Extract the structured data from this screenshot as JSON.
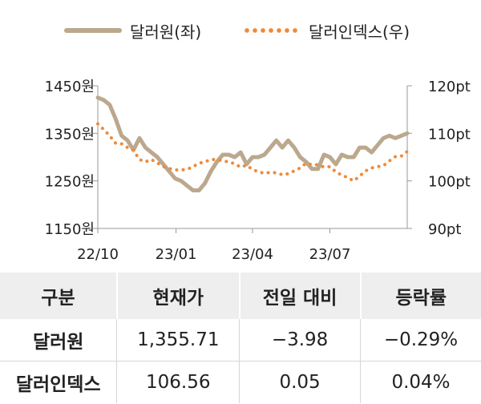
{
  "chart_data": {
    "type": "line",
    "legend_position": "top",
    "x_ticks": [
      "22/10",
      "23/01",
      "23/04",
      "23/07"
    ],
    "x_tick_dates": [
      "2022-10-01",
      "2023-01-01",
      "2023-04-01",
      "2023-07-01"
    ],
    "x_range": [
      "2022-10-01",
      "2023-09-30"
    ],
    "left_axis": {
      "ticks": [
        "1450원",
        "1350원",
        "1250원",
        "1150원"
      ],
      "range": [
        1150,
        1450
      ]
    },
    "right_axis": {
      "ticks": [
        "120pt",
        "110pt",
        "100pt",
        "90pt"
      ],
      "range": [
        90,
        120
      ]
    },
    "series": [
      {
        "name": "달러원(좌)",
        "axis": "left",
        "style": "solid",
        "color": "#bba88d",
        "x": [
          "2022-10-01",
          "2022-10-08",
          "2022-10-15",
          "2022-10-22",
          "2022-10-29",
          "2022-11-05",
          "2022-11-12",
          "2022-11-19",
          "2022-11-26",
          "2022-12-03",
          "2022-12-10",
          "2022-12-17",
          "2022-12-24",
          "2022-12-31",
          "2023-01-07",
          "2023-01-14",
          "2023-01-21",
          "2023-01-28",
          "2023-02-04",
          "2023-02-11",
          "2023-02-18",
          "2023-02-25",
          "2023-03-04",
          "2023-03-11",
          "2023-03-18",
          "2023-03-25",
          "2023-04-01",
          "2023-04-08",
          "2023-04-15",
          "2023-04-22",
          "2023-04-29",
          "2023-05-06",
          "2023-05-13",
          "2023-05-20",
          "2023-05-27",
          "2023-06-03",
          "2023-06-10",
          "2023-06-17",
          "2023-06-24",
          "2023-07-01",
          "2023-07-08",
          "2023-07-15",
          "2023-07-22",
          "2023-07-29",
          "2023-08-05",
          "2023-08-12",
          "2023-08-19",
          "2023-08-26",
          "2023-09-02",
          "2023-09-09",
          "2023-09-16",
          "2023-09-23",
          "2023-09-30"
        ],
        "y": [
          1425,
          1420,
          1410,
          1380,
          1345,
          1335,
          1315,
          1340,
          1320,
          1310,
          1300,
          1285,
          1270,
          1255,
          1250,
          1240,
          1230,
          1230,
          1245,
          1270,
          1290,
          1305,
          1305,
          1300,
          1310,
          1285,
          1300,
          1300,
          1305,
          1320,
          1335,
          1320,
          1335,
          1320,
          1300,
          1290,
          1275,
          1275,
          1305,
          1300,
          1285,
          1305,
          1300,
          1300,
          1320,
          1320,
          1310,
          1325,
          1340,
          1345,
          1340,
          1345,
          1350
        ]
      },
      {
        "name": "달러인덱스(우)",
        "axis": "right",
        "style": "dotted",
        "color": "#ef8a3a",
        "x": [
          "2022-10-01",
          "2022-10-08",
          "2022-10-15",
          "2022-10-22",
          "2022-10-29",
          "2022-11-05",
          "2022-11-12",
          "2022-11-19",
          "2022-11-26",
          "2022-12-03",
          "2022-12-10",
          "2022-12-17",
          "2022-12-24",
          "2022-12-31",
          "2023-01-07",
          "2023-01-14",
          "2023-01-21",
          "2023-01-28",
          "2023-02-04",
          "2023-02-11",
          "2023-02-18",
          "2023-02-25",
          "2023-03-04",
          "2023-03-11",
          "2023-03-18",
          "2023-03-25",
          "2023-04-01",
          "2023-04-08",
          "2023-04-15",
          "2023-04-22",
          "2023-04-29",
          "2023-05-06",
          "2023-05-13",
          "2023-05-20",
          "2023-05-27",
          "2023-06-03",
          "2023-06-10",
          "2023-06-17",
          "2023-06-24",
          "2023-07-01",
          "2023-07-08",
          "2023-07-15",
          "2023-07-22",
          "2023-07-29",
          "2023-08-05",
          "2023-08-12",
          "2023-08-19",
          "2023-08-26",
          "2023-09-02",
          "2023-09-09",
          "2023-09-16",
          "2023-09-23",
          "2023-09-30"
        ],
        "y": [
          112.0,
          110.8,
          109.5,
          107.9,
          107.8,
          107.0,
          106.4,
          104.5,
          104.0,
          104.5,
          103.8,
          103.0,
          102.6,
          102.3,
          102.3,
          102.4,
          103.0,
          103.7,
          104.0,
          104.5,
          104.5,
          104.2,
          104.0,
          103.6,
          102.9,
          103.3,
          102.4,
          101.9,
          101.6,
          101.8,
          101.7,
          101.3,
          101.5,
          102.1,
          102.7,
          103.7,
          103.4,
          103.4,
          102.9,
          103.0,
          101.9,
          101.2,
          100.7,
          100.0,
          101.0,
          102.1,
          102.7,
          103.0,
          103.2,
          104.2,
          105.1,
          105.2,
          106.2
        ]
      }
    ]
  },
  "legend": {
    "series1": "달러원(좌)",
    "series2": "달러인덱스(우)"
  },
  "table": {
    "headers": [
      "구분",
      "현재가",
      "전일 대비",
      "등락률"
    ],
    "rows": [
      [
        "달러원",
        "1,355.71",
        "−3.98",
        "−0.29%"
      ],
      [
        "달러인덱스",
        "106.56",
        "0.05",
        "0.04%"
      ]
    ]
  }
}
